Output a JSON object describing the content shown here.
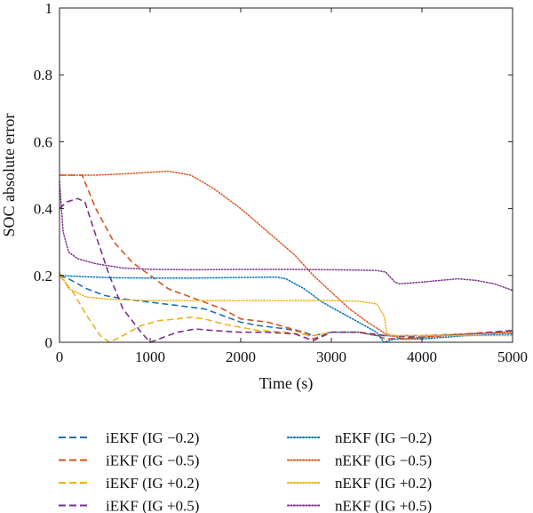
{
  "chart_data": {
    "type": "line",
    "title": "",
    "xlabel": "Time (s)",
    "ylabel": "SOC absolute error",
    "xlim": [
      0,
      5000
    ],
    "ylim": [
      0,
      1
    ],
    "x_ticks": [
      "0",
      "1000",
      "2000",
      "3000",
      "4000",
      "5000"
    ],
    "y_ticks": [
      "0",
      "0.2",
      "0.4",
      "0.6",
      "0.8",
      "1"
    ],
    "grid": false,
    "legend_position": "below",
    "series": [
      {
        "name": "iEKF (IG −0.2)",
        "color": "#1f6fb4",
        "style": "dashed",
        "x": [
          0,
          100,
          300,
          500,
          700,
          1000,
          1300,
          1600,
          1800,
          2000,
          2200,
          2500,
          2700,
          2800,
          3000,
          3300,
          3500,
          3600,
          4000,
          4500,
          5000
        ],
        "y": [
          0.2,
          0.19,
          0.16,
          0.14,
          0.13,
          0.12,
          0.11,
          0.1,
          0.08,
          0.06,
          0.05,
          0.04,
          0.03,
          0.02,
          0.03,
          0.03,
          0.02,
          0.02,
          0.02,
          0.025,
          0.03
        ]
      },
      {
        "name": "iEKF (IG −0.5)",
        "color": "#d95319",
        "style": "dashed",
        "x": [
          0,
          150,
          250,
          400,
          600,
          800,
          1000,
          1200,
          1500,
          1800,
          2000,
          2300,
          2500,
          2700,
          2800,
          3000,
          3300,
          3500,
          3600,
          4000,
          4500,
          5000
        ],
        "y": [
          0.5,
          0.5,
          0.5,
          0.4,
          0.3,
          0.24,
          0.2,
          0.16,
          0.13,
          0.1,
          0.07,
          0.06,
          0.045,
          0.03,
          0.01,
          0.03,
          0.03,
          0.02,
          0.01,
          0.015,
          0.025,
          0.035
        ]
      },
      {
        "name": "iEKF (IG +0.2)",
        "color": "#edb120",
        "style": "dashed",
        "x": [
          0,
          150,
          300,
          450,
          550,
          700,
          900,
          1100,
          1300,
          1450,
          1600,
          1800,
          2000,
          2200,
          2500,
          2800,
          3000,
          3300,
          3600,
          4000,
          4500,
          5000
        ],
        "y": [
          0.2,
          0.15,
          0.08,
          0.02,
          0.0,
          0.02,
          0.05,
          0.065,
          0.07,
          0.075,
          0.07,
          0.055,
          0.045,
          0.035,
          0.03,
          0.02,
          0.03,
          0.03,
          0.02,
          0.02,
          0.025,
          0.03
        ]
      },
      {
        "name": "iEKF (IG +0.5)",
        "color": "#7e2f8e",
        "style": "dashed",
        "x": [
          0,
          80,
          200,
          280,
          400,
          550,
          700,
          900,
          1000,
          1100,
          1300,
          1500,
          1700,
          2000,
          2300,
          2600,
          2800,
          3000,
          3300,
          3600,
          4000,
          4500,
          5000
        ],
        "y": [
          0.4,
          0.42,
          0.43,
          0.42,
          0.32,
          0.2,
          0.1,
          0.03,
          0.0,
          0.01,
          0.03,
          0.04,
          0.035,
          0.03,
          0.03,
          0.025,
          0.005,
          0.03,
          0.03,
          0.02,
          0.015,
          0.025,
          0.035
        ]
      },
      {
        "name": "nEKF (IG −0.2)",
        "color": "#0072bd",
        "style": "dotted",
        "x": [
          0,
          300,
          600,
          1000,
          1500,
          2000,
          2400,
          2500,
          2700,
          2900,
          3100,
          3300,
          3500,
          3580,
          3700,
          4000,
          4500,
          5000
        ],
        "y": [
          0.2,
          0.196,
          0.193,
          0.192,
          0.192,
          0.194,
          0.195,
          0.19,
          0.16,
          0.12,
          0.09,
          0.06,
          0.03,
          0.0,
          0.01,
          0.01,
          0.02,
          0.025
        ]
      },
      {
        "name": "nEKF (IG −0.5)",
        "color": "#d95319",
        "style": "dotted",
        "x": [
          0,
          400,
          800,
          1200,
          1450,
          1700,
          2000,
          2300,
          2600,
          2800,
          3000,
          3200,
          3400,
          3600,
          3800,
          4000,
          4500,
          5000
        ],
        "y": [
          0.5,
          0.5,
          0.505,
          0.512,
          0.5,
          0.46,
          0.4,
          0.33,
          0.26,
          0.2,
          0.15,
          0.1,
          0.06,
          0.025,
          0.01,
          0.015,
          0.025,
          0.03
        ]
      },
      {
        "name": "nEKF (IG +0.2)",
        "color": "#edb120",
        "style": "dotted",
        "x": [
          0,
          100,
          300,
          600,
          1000,
          1500,
          2000,
          2500,
          3000,
          3300,
          3500,
          3580,
          3620,
          3800,
          4200,
          4600,
          5000
        ],
        "y": [
          0.21,
          0.16,
          0.135,
          0.128,
          0.125,
          0.125,
          0.125,
          0.125,
          0.125,
          0.123,
          0.115,
          0.08,
          0.02,
          0.02,
          0.02,
          0.02,
          0.02
        ]
      },
      {
        "name": "nEKF (IG +0.5)",
        "color": "#7e2f8e",
        "style": "dotted",
        "x": [
          0,
          40,
          100,
          200,
          400,
          700,
          1000,
          1500,
          2000,
          2500,
          3000,
          3300,
          3500,
          3600,
          3700,
          3750,
          4000,
          4200,
          4400,
          4600,
          4800,
          5000
        ],
        "y": [
          0.48,
          0.33,
          0.27,
          0.25,
          0.235,
          0.222,
          0.218,
          0.217,
          0.218,
          0.218,
          0.217,
          0.216,
          0.215,
          0.21,
          0.18,
          0.175,
          0.18,
          0.185,
          0.19,
          0.185,
          0.175,
          0.155
        ]
      }
    ]
  }
}
